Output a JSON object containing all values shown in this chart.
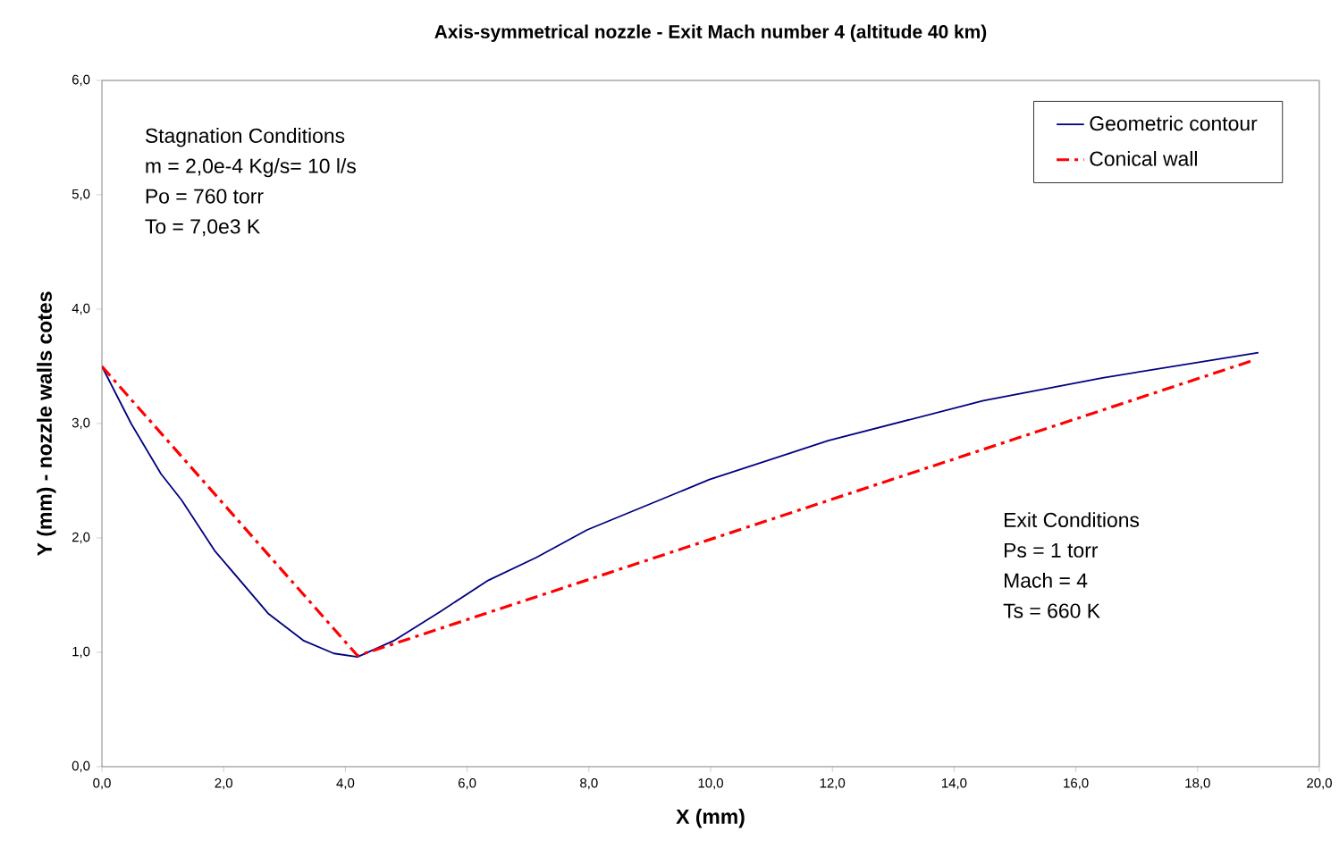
{
  "chart_data": {
    "type": "line",
    "title": "Axis-symmetrical nozzle - Exit Mach number 4 (altitude 40 km)",
    "xlabel": "X (mm)",
    "ylabel": "Y (mm) - nozzle walls cotes",
    "xlim": [
      0,
      20
    ],
    "ylim": [
      0,
      6
    ],
    "xticks": [
      {
        "value": 0,
        "label": "0,0"
      },
      {
        "value": 2,
        "label": "2,0"
      },
      {
        "value": 4,
        "label": "4,0"
      },
      {
        "value": 6,
        "label": "6,0"
      },
      {
        "value": 8,
        "label": "8,0"
      },
      {
        "value": 10,
        "label": "10,0"
      },
      {
        "value": 12,
        "label": "12,0"
      },
      {
        "value": 14,
        "label": "14,0"
      },
      {
        "value": 16,
        "label": "16,0"
      },
      {
        "value": 18,
        "label": "18,0"
      },
      {
        "value": 20,
        "label": "20,0"
      }
    ],
    "yticks": [
      {
        "value": 0,
        "label": "0,0"
      },
      {
        "value": 1,
        "label": "1,0"
      },
      {
        "value": 2,
        "label": "2,0"
      },
      {
        "value": 3,
        "label": "3,0"
      },
      {
        "value": 4,
        "label": "4,0"
      },
      {
        "value": 5,
        "label": "5,0"
      },
      {
        "value": 6,
        "label": "6,0"
      }
    ],
    "grid": false,
    "legend": "top right",
    "marker": "none",
    "series": [
      {
        "name": "Geometric contour",
        "color": "#000080",
        "line_style": "solid",
        "x": [
          0,
          0.48,
          0.97,
          1.31,
          1.85,
          2.73,
          3.32,
          3.81,
          4.2,
          4.79,
          5.57,
          6.35,
          7.14,
          7.97,
          9.98,
          11.93,
          14.48,
          16.44,
          19.0
        ],
        "values": [
          3.5,
          3.0,
          2.56,
          2.33,
          1.89,
          1.34,
          1.1,
          0.99,
          0.96,
          1.1,
          1.36,
          1.63,
          1.83,
          2.07,
          2.51,
          2.85,
          3.2,
          3.4,
          3.62
        ]
      },
      {
        "name": "Conical wall",
        "color": "#ff0000",
        "line_style": "dashdot",
        "x": [
          0,
          4.2,
          18.9
        ],
        "values": [
          3.5,
          0.97,
          3.55
        ]
      }
    ],
    "annotations": [
      "Stagnation Conditions",
      "m = 2,0e-4 Kg/s= 10 l/s",
      "Po = 760 torr",
      "To = 7,0e3 K",
      "Exit Conditions",
      "Ps = 1 torr",
      "Mach = 4",
      "Ts = 660 K"
    ]
  }
}
